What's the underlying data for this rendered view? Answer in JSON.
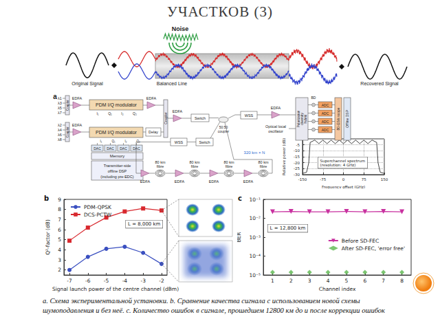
{
  "title": "УЧАСТКОВ (3)",
  "signal_diagram": {
    "noise": "Noise",
    "original": "Original Signal",
    "line": "Balanced Line",
    "recovered": "Recovered Signal"
  },
  "setup": {
    "panel": "a",
    "lambdas_upper": [
      "λ1",
      "λ3",
      "λ5",
      "λ7"
    ],
    "lambdas_lower": [
      "λ2",
      "λ4",
      "λ6",
      "λ8"
    ],
    "coupler": "Coupler",
    "edfa": "EDFA",
    "modulator": "PDM I/Q modulator",
    "modulator_inputs": [
      "I₁",
      "Q₁",
      "I₂",
      "Q₂"
    ],
    "delay": "Delay",
    "dac": "DAC",
    "memory": "Memory",
    "tx_dsp": [
      "Transmitter-side",
      "offline DSP",
      "(including pre-EDC)"
    ],
    "switch": "Switch",
    "wss": "WSS",
    "splitter": [
      "50:50",
      "coupler"
    ],
    "fibre": [
      "80 km",
      "fibre"
    ],
    "span": "320 km × N",
    "lo": [
      "Optical local",
      "oscillator"
    ],
    "hybrid": [
      "Polarization",
      "diversity",
      "hybrid"
    ],
    "bd": "BD",
    "adc": "ADC",
    "scope": "80-GS/s scope",
    "dsp": "Offline DSP"
  },
  "chart_data": [
    {
      "type": "line",
      "panel": "b",
      "annotation": "L = 8,000 km",
      "x_label": "Signal launch power of the centre channel (dBm)",
      "y_label": "Q²-factor (dB)",
      "x": [
        -7,
        -6,
        -5,
        -4,
        -3,
        -2
      ],
      "series": [
        {
          "name": "PDM-QPSK",
          "color": "#3a4fc0",
          "marker": "circle",
          "values": [
            2.0,
            3.3,
            4.1,
            4.3,
            3.7,
            2.6
          ]
        },
        {
          "name": "DCS-PCTW",
          "color": "#d8282e",
          "marker": "square",
          "values": [
            4.9,
            6.2,
            7.2,
            7.8,
            8.1,
            7.9
          ]
        }
      ],
      "xlim": [
        -7.3,
        -1.7
      ],
      "xticks": [
        -7,
        -6,
        -5,
        -4,
        -3,
        -2
      ],
      "ylim": [
        1.5,
        9
      ],
      "yticks": [
        2,
        3,
        4,
        5,
        6,
        7,
        8,
        9
      ],
      "grid": false,
      "legend": "upper left"
    },
    {
      "type": "line",
      "panel": "c",
      "annotation": "L = 12,800 km",
      "x_label": "Channel index",
      "y_label": "BER",
      "log": "y",
      "x": [
        1,
        2,
        3,
        4,
        5,
        6,
        7,
        8
      ],
      "series": [
        {
          "name": "Before SD-FEC",
          "type": "line",
          "color": "#c8309f",
          "marker": "triangle_down",
          "values": [
            0.022,
            0.023,
            0.022,
            0.022,
            0.023,
            0.022,
            0.023,
            0.022
          ]
        },
        {
          "name": "After SD-FEC, 'error free'",
          "type": "scatter",
          "color": "#5cb84f",
          "marker": "diamond",
          "values": [
            1.4e-05,
            1.4e-05,
            1.4e-05,
            1.4e-05,
            1.4e-05,
            1.4e-05,
            1.4e-05,
            1.4e-05
          ]
        }
      ],
      "xlim": [
        0.5,
        8.5
      ],
      "xticks": [
        1,
        2,
        3,
        4,
        5,
        6,
        7,
        8
      ],
      "ylim": [
        1e-05,
        0.1
      ],
      "yticks": [
        {
          "value": 1e-05,
          "label": "10⁻⁵"
        },
        {
          "value": 0.0001,
          "label": "10⁻⁴"
        },
        {
          "value": 0.001,
          "label": "10⁻³"
        },
        {
          "value": 0.01,
          "label": "10⁻²"
        },
        {
          "value": 0.1,
          "label": "10⁻¹"
        }
      ],
      "grid": false,
      "legend": "right"
    },
    {
      "type": "line",
      "annotation": [
        "Superchannel spectrum",
        "(resolution: 4 GHz)"
      ],
      "x_label": "Frequency offset (GHz)",
      "y_label": "Relative power (dB)",
      "x": [
        -150,
        -135,
        -127,
        -122,
        -105,
        -90,
        -75,
        -60,
        -45,
        -30,
        -15,
        0,
        15,
        30,
        45,
        60,
        75,
        90,
        105,
        122,
        127,
        135,
        150
      ],
      "series": [
        {
          "color": "#111111",
          "values": [
            -29,
            -28,
            -20,
            -3,
            -1,
            -4,
            -1,
            -4,
            -1,
            -4,
            -1,
            -4,
            -1,
            -4,
            -1,
            -4,
            -1,
            -4,
            -1,
            -3,
            -20,
            -28,
            -29
          ]
        }
      ],
      "xlim": [
        -150,
        150
      ],
      "xticks": [
        -150,
        -75,
        0,
        75,
        150
      ],
      "ylim": [
        -30,
        0
      ],
      "yticks": [
        -30,
        -25,
        -20,
        -15,
        -10,
        -5,
        0
      ],
      "grid": true
    }
  ],
  "caption": [
    "a. Схема экспериментальной установки. b. Сравнение качества сигнала с использованием новой схемы",
    "шумоподавления и без неё. c. Количество ошибок в сигнале, прошедшем 12800 км до и после коррекции ошибок"
  ]
}
